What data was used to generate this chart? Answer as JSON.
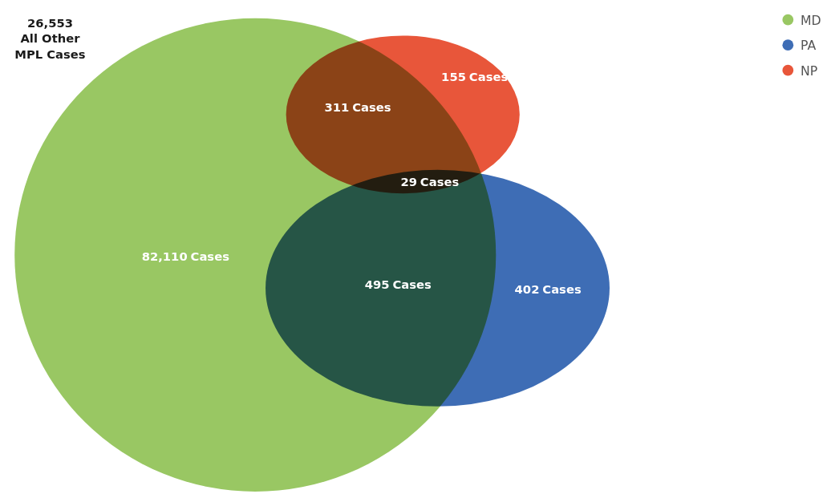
{
  "chart_data": {
    "type": "other",
    "categories": [
      "All Other MPL Cases",
      "Cases",
      "Cases",
      "Cases",
      "Cases",
      "Cases",
      "Cases"
    ],
    "series": [
      {
        "name": "MD",
        "color": "#99c763",
        "values": [
          null,
          82110,
          null,
          null,
          null,
          null,
          null
        ],
        "value_labels": [
          null,
          "82,110",
          null,
          null,
          null,
          null,
          null
        ]
      },
      {
        "name": "PA",
        "color": "#3e6db5",
        "values": [
          null,
          null,
          null,
          null,
          null,
          null,
          402
        ],
        "value_labels": [
          null,
          null,
          null,
          null,
          null,
          null,
          "402"
        ]
      },
      {
        "name": "NP",
        "color": "#e8563a",
        "values": [
          null,
          null,
          null,
          155,
          null,
          null,
          null
        ],
        "value_labels": [
          null,
          null,
          null,
          "155",
          null,
          null,
          null
        ]
      },
      {
        "values": [
          26553,
          null,
          311,
          null,
          29,
          495,
          null
        ],
        "value_labels": [
          "26,553",
          null,
          "311",
          null,
          "29",
          "495",
          null
        ]
      }
    ],
    "legend": "top right"
  }
}
